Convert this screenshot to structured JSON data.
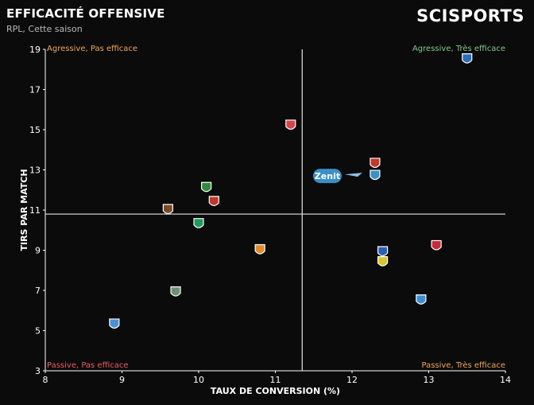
{
  "header": {
    "title": "EFFICACITÉ OFFENSIVE",
    "subtitle": "RPL, Cette saison",
    "brand": "SCISPORTS"
  },
  "chart_data": {
    "type": "scatter",
    "title": "EFFICACITÉ OFFENSIVE",
    "subtitle": "RPL, Cette saison",
    "xlabel": "TAUX DE CONVERSION (%)",
    "ylabel": "TIRS PAR MATCH",
    "xlim": [
      8,
      14
    ],
    "ylim": [
      3,
      19
    ],
    "xticks": [
      8,
      9,
      10,
      11,
      12,
      13,
      14
    ],
    "yticks": [
      3,
      5,
      7,
      9,
      11,
      13,
      15,
      17,
      19
    ],
    "reference_lines": {
      "x": 11.35,
      "y": 10.8
    },
    "quadrants": [
      {
        "label": "Agressive, Pas efficace",
        "position": "top-left",
        "color": "#f0a65a"
      },
      {
        "label": "Agressive, Très efficace",
        "position": "top-right",
        "color": "#7fc98a"
      },
      {
        "label": "Passive, Pas efficace",
        "position": "bottom-left",
        "color": "#ef5b5b"
      },
      {
        "label": "Passive, Très efficace",
        "position": "bottom-right",
        "color": "#f0a65a"
      }
    ],
    "highlight": {
      "label": "Zenit",
      "x": 12.3,
      "y": 12.7,
      "color": "#3a8fc4"
    },
    "points": [
      {
        "x": 13.5,
        "y": 18.5,
        "color": "#2a6fb8"
      },
      {
        "x": 11.2,
        "y": 15.2,
        "color": "#d9434a"
      },
      {
        "x": 12.3,
        "y": 13.3,
        "color": "#c0392b"
      },
      {
        "x": 12.3,
        "y": 12.7,
        "color": "#3a8fc4"
      },
      {
        "x": 10.1,
        "y": 12.1,
        "color": "#2e8b3d"
      },
      {
        "x": 10.2,
        "y": 11.4,
        "color": "#c0392b"
      },
      {
        "x": 9.6,
        "y": 11.0,
        "color": "#7a4a2a"
      },
      {
        "x": 10.0,
        "y": 10.3,
        "color": "#1f9b5a"
      },
      {
        "x": 10.8,
        "y": 9.0,
        "color": "#e08a2a"
      },
      {
        "x": 13.1,
        "y": 9.2,
        "color": "#c82a3a"
      },
      {
        "x": 12.4,
        "y": 8.9,
        "color": "#2a5fb8"
      },
      {
        "x": 12.4,
        "y": 8.4,
        "color": "#d8c62a"
      },
      {
        "x": 9.7,
        "y": 6.9,
        "color": "#6f8f78"
      },
      {
        "x": 12.9,
        "y": 6.5,
        "color": "#3a8fd4"
      },
      {
        "x": 8.9,
        "y": 5.3,
        "color": "#4d8fd0"
      }
    ]
  }
}
